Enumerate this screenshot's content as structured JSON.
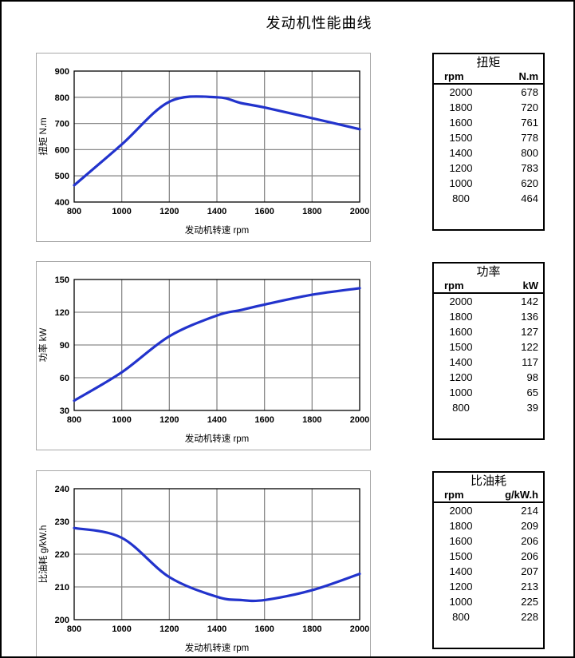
{
  "page_title": "发动机性能曲线",
  "colors": {
    "curve": "#2233cc",
    "grid": "#8a8a8a",
    "axis": "#000000",
    "panel_border": "#a8a8a8"
  },
  "chart_data": [
    {
      "type": "line",
      "name": "torque-curve",
      "title": "",
      "xlabel": "发动机转速 rpm",
      "ylabel": "扭矩 N.m",
      "x": [
        800,
        1000,
        1200,
        1400,
        1500,
        1600,
        1800,
        2000
      ],
      "y": [
        464,
        620,
        783,
        800,
        778,
        761,
        720,
        678
      ],
      "xlim": [
        800,
        2000
      ],
      "ylim": [
        400,
        900
      ],
      "xticks": [
        800,
        1000,
        1200,
        1400,
        1600,
        1800,
        2000
      ],
      "yticks": [
        400,
        500,
        600,
        700,
        800,
        900
      ],
      "grid": true,
      "legend": false,
      "line_color": "#2233cc"
    },
    {
      "type": "line",
      "name": "power-curve",
      "title": "",
      "xlabel": "发动机转速 rpm",
      "ylabel": "功率 kW",
      "x": [
        800,
        1000,
        1200,
        1400,
        1500,
        1600,
        1800,
        2000
      ],
      "y": [
        39,
        65,
        98,
        117,
        122,
        127,
        136,
        142
      ],
      "xlim": [
        800,
        2000
      ],
      "ylim": [
        30,
        150
      ],
      "xticks": [
        800,
        1000,
        1200,
        1400,
        1600,
        1800,
        2000
      ],
      "yticks": [
        30,
        60,
        90,
        120,
        150
      ],
      "grid": true,
      "legend": false,
      "line_color": "#2233cc"
    },
    {
      "type": "line",
      "name": "fuel-consumption-curve",
      "title": "",
      "xlabel": "发动机转速 rpm",
      "ylabel": "比油耗 g/kW.h",
      "x": [
        800,
        1000,
        1200,
        1400,
        1500,
        1600,
        1800,
        2000
      ],
      "y": [
        228,
        225,
        213,
        207,
        206,
        206,
        209,
        214
      ],
      "xlim": [
        800,
        2000
      ],
      "ylim": [
        200,
        240
      ],
      "xticks": [
        800,
        1000,
        1200,
        1400,
        1600,
        1800,
        2000
      ],
      "yticks": [
        200,
        210,
        220,
        230,
        240
      ],
      "grid": true,
      "legend": false,
      "line_color": "#2233cc"
    }
  ],
  "tables": [
    {
      "title": "扭矩",
      "columns": [
        "rpm",
        "N.m"
      ],
      "rows": [
        [
          "2000",
          "678"
        ],
        [
          "1800",
          "720"
        ],
        [
          "1600",
          "761"
        ],
        [
          "1500",
          "778"
        ],
        [
          "1400",
          "800"
        ],
        [
          "1200",
          "783"
        ],
        [
          "1000",
          "620"
        ],
        [
          "800",
          "464"
        ]
      ]
    },
    {
      "title": "功率",
      "columns": [
        "rpm",
        "kW"
      ],
      "rows": [
        [
          "2000",
          "142"
        ],
        [
          "1800",
          "136"
        ],
        [
          "1600",
          "127"
        ],
        [
          "1500",
          "122"
        ],
        [
          "1400",
          "117"
        ],
        [
          "1200",
          "98"
        ],
        [
          "1000",
          "65"
        ],
        [
          "800",
          "39"
        ]
      ]
    },
    {
      "title": "比油耗",
      "columns": [
        "rpm",
        "g/kW.h"
      ],
      "rows": [
        [
          "2000",
          "214"
        ],
        [
          "1800",
          "209"
        ],
        [
          "1600",
          "206"
        ],
        [
          "1500",
          "206"
        ],
        [
          "1400",
          "207"
        ],
        [
          "1200",
          "213"
        ],
        [
          "1000",
          "225"
        ],
        [
          "800",
          "228"
        ]
      ]
    }
  ]
}
